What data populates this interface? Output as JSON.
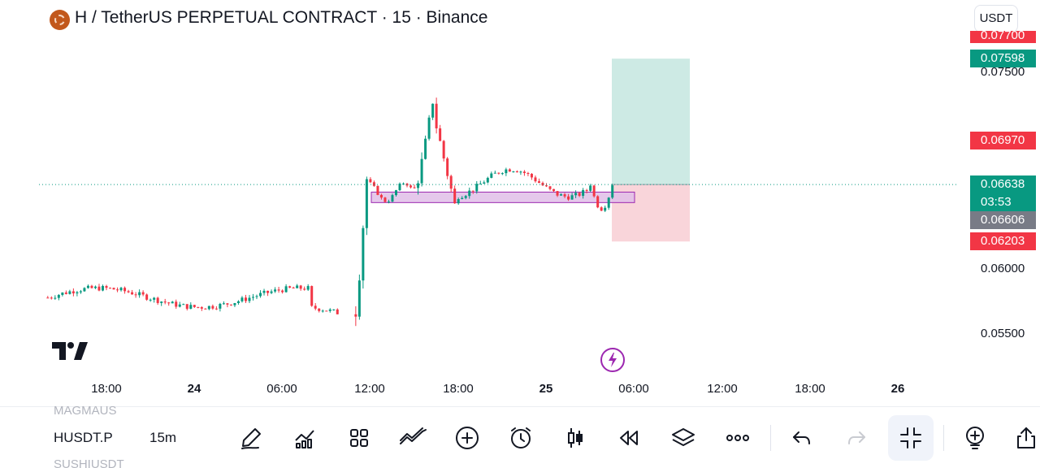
{
  "header": {
    "logo_icon": "h-token-icon",
    "title": "H / TetherUS PERPETUAL CONTRACT · 15 · Binance",
    "currency": "USDT"
  },
  "price_axis": {
    "labels": [
      "0.07500",
      "0.06000",
      "0.05500"
    ],
    "tags": {
      "top_partial": "0.07700",
      "target": "0.07598",
      "alert": "0.06970",
      "last_price": "0.06638",
      "countdown": "03:53",
      "gray": "0.06606",
      "stop": "0.06203"
    }
  },
  "time_axis": {
    "labels": [
      {
        "text": "18:00",
        "bold": false
      },
      {
        "text": "24",
        "bold": true
      },
      {
        "text": "06:00",
        "bold": false
      },
      {
        "text": "12:00",
        "bold": false
      },
      {
        "text": "18:00",
        "bold": false
      },
      {
        "text": "25",
        "bold": true
      },
      {
        "text": "06:00",
        "bold": false
      },
      {
        "text": "12:00",
        "bold": false
      },
      {
        "text": "18:00",
        "bold": false
      },
      {
        "text": "26",
        "bold": true
      }
    ]
  },
  "toolbar": {
    "ghost_above": "MAGMAUS",
    "symbol": "HUSDT.P",
    "interval": "15m",
    "ghost_below": "SUSHIUSDT",
    "icons": [
      "pencil-icon",
      "indicators-icon",
      "apps-grid-icon",
      "compare-icon",
      "add-icon",
      "alert-clock-icon",
      "candles-icon",
      "replay-icon",
      "layers-icon",
      "more-icon",
      "undo-icon",
      "redo-icon",
      "collapse-icon",
      "add-template-icon",
      "share-icon"
    ]
  },
  "colors": {
    "up": "#089981",
    "down": "#f23645",
    "zone_fill": "#e1bee7",
    "zone_border": "#9c27b0",
    "target_fill": "#cdeae4",
    "stop_fill": "#f9d5da"
  },
  "chart_data": {
    "type": "candlestick",
    "symbol": "H / TetherUS PERPETUAL CONTRACT",
    "interval": "15",
    "y_ticks": [
      0.075,
      0.06,
      0.055
    ],
    "ylim": [
      0.0528,
      0.0778
    ],
    "last_price": 0.06638,
    "segments": [
      {
        "from_time": "23 14:00",
        "to_time": "24 10:00",
        "range": [
          0.0563,
          0.0592
        ],
        "trend": "sideways then small dip"
      },
      {
        "from_time": "24 11:00",
        "to_time": "24 12:00",
        "range": [
          0.0563,
          0.0668
        ],
        "trend": "sharp spike up"
      },
      {
        "from_time": "24 12:00",
        "to_time": "24 15:00",
        "range": [
          0.0648,
          0.0668
        ],
        "trend": "consolidation"
      },
      {
        "from_time": "24 15:00",
        "to_time": "24 16:30",
        "range": [
          0.066,
          0.0728
        ],
        "trend": "rally to high"
      },
      {
        "from_time": "24 16:30",
        "to_time": "24 18:00",
        "range": [
          0.0648,
          0.0708
        ],
        "trend": "pullback"
      },
      {
        "from_time": "24 18:00",
        "to_time": "25 03:00",
        "range": [
          0.065,
          0.068
        ],
        "trend": "range"
      },
      {
        "from_time": "25 03:00",
        "to_time": "25 04:40",
        "range": [
          0.0643,
          0.0664
        ],
        "trend": "dip then recovery"
      }
    ],
    "demand_zone": [
      0.065,
      0.0658
    ],
    "long_position": {
      "entry": 0.06638,
      "target": 0.07598,
      "stop": 0.06203
    }
  }
}
